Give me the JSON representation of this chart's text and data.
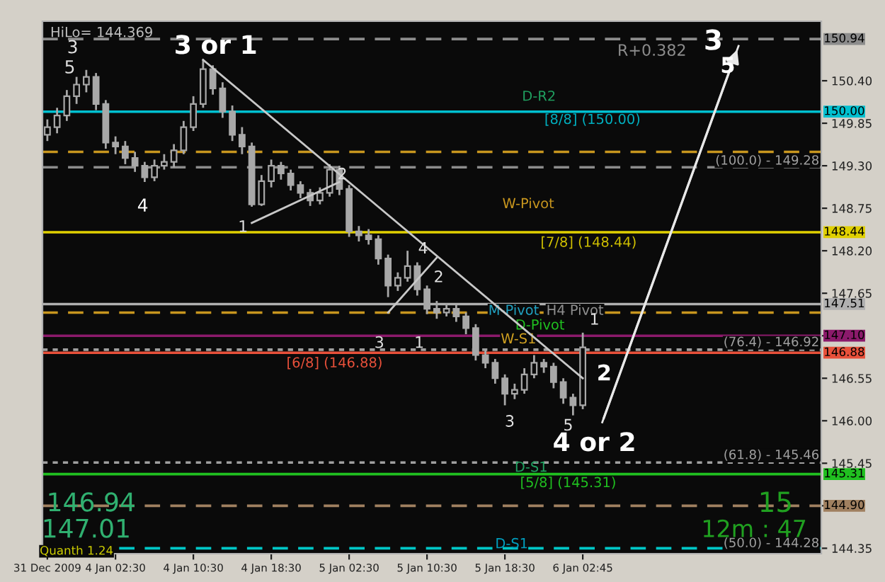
{
  "chart_data": {
    "type": "candlestick",
    "categories": [
      "31 Dec 2009",
      null,
      null,
      null,
      null,
      null,
      null,
      "4 Jan 02:30",
      null,
      null,
      null,
      null,
      null,
      null,
      null,
      "4 Jan 10:30",
      null,
      null,
      null,
      null,
      null,
      null,
      null,
      "4 Jan 18:30",
      null,
      null,
      null,
      null,
      null,
      null,
      null,
      "5 Jan 02:30",
      null,
      null,
      null,
      null,
      null,
      null,
      null,
      "5 Jan 10:30",
      null,
      null,
      null,
      null,
      null,
      null,
      null,
      "5 Jan 18:30",
      null,
      null,
      null,
      null,
      null,
      null,
      null,
      "6 Jan 02:45",
      null,
      null,
      null,
      null,
      null,
      null,
      null,
      null,
      null,
      null,
      null,
      null,
      null,
      null,
      null,
      null,
      null,
      null,
      null,
      null,
      null,
      null,
      null,
      null
    ],
    "ohlc": [
      [
        149.7,
        149.9,
        149.62,
        149.8
      ],
      [
        149.8,
        150.05,
        149.72,
        149.95
      ],
      [
        149.95,
        150.28,
        149.88,
        150.2
      ],
      [
        150.2,
        150.45,
        150.1,
        150.35
      ],
      [
        150.35,
        150.54,
        150.25,
        150.45
      ],
      [
        150.45,
        150.5,
        150.02,
        150.1
      ],
      [
        150.1,
        150.15,
        149.52,
        149.6
      ],
      [
        149.6,
        149.68,
        149.45,
        149.55
      ],
      [
        149.55,
        149.62,
        149.32,
        149.4
      ],
      [
        149.4,
        149.48,
        149.22,
        149.3
      ],
      [
        149.3,
        149.35,
        149.09,
        149.15
      ],
      [
        149.15,
        149.38,
        149.1,
        149.3
      ],
      [
        149.3,
        149.45,
        149.25,
        149.35
      ],
      [
        149.35,
        149.58,
        149.28,
        149.5
      ],
      [
        149.5,
        149.88,
        149.45,
        149.8
      ],
      [
        149.8,
        150.2,
        149.75,
        150.1
      ],
      [
        150.1,
        150.67,
        150.05,
        150.55
      ],
      [
        150.55,
        150.6,
        150.22,
        150.3
      ],
      [
        150.3,
        150.38,
        149.92,
        150.0
      ],
      [
        150.0,
        150.08,
        149.62,
        149.7
      ],
      [
        149.7,
        149.8,
        149.45,
        149.55
      ],
      [
        149.55,
        149.6,
        148.77,
        148.8
      ],
      [
        148.8,
        149.18,
        148.78,
        149.1
      ],
      [
        149.1,
        149.38,
        149.02,
        149.3
      ],
      [
        149.3,
        149.35,
        149.12,
        149.2
      ],
      [
        149.2,
        149.25,
        148.98,
        149.05
      ],
      [
        149.05,
        149.1,
        148.88,
        148.95
      ],
      [
        148.95,
        149.0,
        148.78,
        148.85
      ],
      [
        148.85,
        149.02,
        148.8,
        148.95
      ],
      [
        148.95,
        149.32,
        148.9,
        149.25
      ],
      [
        149.25,
        149.3,
        148.92,
        149.0
      ],
      [
        149.0,
        149.05,
        148.38,
        148.45
      ],
      [
        148.45,
        148.52,
        148.32,
        148.4
      ],
      [
        148.4,
        148.48,
        148.28,
        148.35
      ],
      [
        148.35,
        148.4,
        148.02,
        148.1
      ],
      [
        148.1,
        148.15,
        147.6,
        147.75
      ],
      [
        147.75,
        147.92,
        147.68,
        147.85
      ],
      [
        147.85,
        148.2,
        147.8,
        148.0
      ],
      [
        148.0,
        148.05,
        147.62,
        147.7
      ],
      [
        147.7,
        147.75,
        147.38,
        147.45
      ],
      [
        147.45,
        147.55,
        147.32,
        147.4
      ],
      [
        147.4,
        147.52,
        147.35,
        147.45
      ],
      [
        147.45,
        147.5,
        147.28,
        147.35
      ],
      [
        147.35,
        147.4,
        147.12,
        147.2
      ],
      [
        147.2,
        147.25,
        146.78,
        146.85
      ],
      [
        146.85,
        146.92,
        146.68,
        146.75
      ],
      [
        146.75,
        146.8,
        146.48,
        146.55
      ],
      [
        146.55,
        146.6,
        146.2,
        146.35
      ],
      [
        146.35,
        146.48,
        146.28,
        146.4
      ],
      [
        146.4,
        146.68,
        146.35,
        146.6
      ],
      [
        146.6,
        146.85,
        146.55,
        146.75
      ],
      [
        146.75,
        146.8,
        146.62,
        146.7
      ],
      [
        146.7,
        146.75,
        146.42,
        146.5
      ],
      [
        146.5,
        146.55,
        146.22,
        146.3
      ],
      [
        146.3,
        146.35,
        146.07,
        146.2
      ],
      [
        146.2,
        147.14,
        146.15,
        146.95
      ],
      null,
      null,
      null,
      null,
      null,
      null,
      null,
      null,
      null,
      null,
      null,
      null,
      null,
      null,
      null,
      null,
      null,
      null,
      null,
      null,
      null,
      null,
      null,
      null
    ],
    "color": "#a8a8a8",
    "series": [
      {
        "type": "line",
        "color": "#c8c8c8",
        "values": [
          null,
          null,
          null,
          null,
          null,
          null,
          null,
          null,
          null,
          null,
          null,
          null,
          null,
          null,
          null,
          null,
          150.67,
          null,
          null,
          null,
          null,
          null,
          null,
          null,
          null,
          null,
          null,
          null,
          null,
          null,
          null,
          null,
          null,
          null,
          null,
          null,
          null,
          null,
          null,
          null,
          null,
          null,
          null,
          null,
          null,
          null,
          null,
          null,
          null,
          null,
          null,
          null,
          null,
          null,
          null,
          146.55,
          null,
          null,
          null,
          null,
          null,
          null,
          null,
          null,
          null,
          null,
          null,
          null,
          null,
          null,
          null,
          null,
          null,
          null,
          null,
          null,
          null,
          null,
          null,
          null
        ]
      },
      {
        "type": "line",
        "color": "#c8c8c8",
        "values": [
          null,
          null,
          null,
          null,
          null,
          null,
          null,
          null,
          null,
          null,
          null,
          null,
          null,
          null,
          null,
          null,
          null,
          null,
          null,
          null,
          null,
          148.56,
          null,
          null,
          null,
          null,
          null,
          null,
          null,
          null,
          149.09,
          null,
          null,
          null,
          null,
          null,
          null,
          null,
          null,
          null,
          null,
          null,
          null,
          null,
          null,
          null,
          null,
          null,
          null,
          null,
          null,
          null,
          null,
          null,
          null,
          null,
          null,
          null,
          null,
          null,
          null,
          null,
          null,
          null,
          null,
          null,
          null,
          null,
          null,
          null,
          null,
          null,
          null,
          null,
          null,
          null,
          null,
          null,
          null,
          null
        ]
      },
      {
        "type": "line",
        "color": "#c8c8c8",
        "values": [
          null,
          null,
          null,
          null,
          null,
          null,
          null,
          null,
          null,
          null,
          null,
          null,
          null,
          null,
          null,
          null,
          null,
          null,
          null,
          null,
          null,
          null,
          null,
          null,
          null,
          null,
          null,
          null,
          null,
          null,
          null,
          null,
          null,
          null,
          null,
          147.4,
          null,
          null,
          null,
          null,
          148.11,
          null,
          null,
          null,
          null,
          null,
          null,
          null,
          null,
          null,
          null,
          null,
          null,
          null,
          null,
          null,
          null,
          null,
          null,
          null,
          null,
          null,
          null,
          null,
          null,
          null,
          null,
          null,
          null,
          null,
          null,
          null,
          null,
          null,
          null,
          null,
          null,
          null,
          null,
          null
        ]
      },
      {
        "type": "line",
        "color": "#e8e8e8",
        "values": [
          null,
          null,
          null,
          null,
          null,
          null,
          null,
          null,
          null,
          null,
          null,
          null,
          null,
          null,
          null,
          null,
          null,
          null,
          null,
          null,
          null,
          null,
          null,
          null,
          null,
          null,
          null,
          null,
          null,
          null,
          null,
          null,
          null,
          null,
          null,
          null,
          null,
          null,
          null,
          null,
          null,
          null,
          null,
          null,
          null,
          null,
          null,
          null,
          null,
          null,
          null,
          null,
          null,
          null,
          null,
          null,
          null,
          145.98,
          null,
          null,
          null,
          null,
          null,
          null,
          null,
          null,
          null,
          null,
          null,
          null,
          null,
          150.85,
          null,
          null,
          null,
          null,
          null,
          null,
          null,
          null
        ]
      }
    ],
    "ylim": [
      144.28,
      151.17
    ],
    "yticks": [
      {
        "value": 150.4,
        "label": "150.40"
      },
      149.85,
      {
        "value": 149.3,
        "label": "149.30"
      },
      148.75,
      {
        "value": 148.2,
        "label": "148.20"
      },
      147.65,
      {
        "value": 147.1,
        "label": null
      },
      146.55,
      {
        "value": 146.0,
        "label": "146.00"
      },
      145.45,
      {
        "value": 144.9,
        "label": null
      },
      144.35
    ],
    "ref_lines": [
      {
        "axis": "y",
        "value": 150.94,
        "label": "150.94",
        "color": "#8c8c8c",
        "line_style": "dashed"
      },
      {
        "axis": "y",
        "value": 150.0,
        "label": "150.00",
        "color": "#00c0d0",
        "line_style": "solid"
      },
      {
        "axis": "y",
        "value": 149.48,
        "color": "#c8961e",
        "line_style": "dashed"
      },
      {
        "axis": "y",
        "value": 149.28,
        "color": "#8c8c8c",
        "line_style": "dashed"
      },
      {
        "axis": "y",
        "value": 148.44,
        "label": "148.44",
        "color": "#e0d000",
        "line_style": "solid"
      },
      {
        "axis": "y",
        "value": 147.51,
        "label": "147.51",
        "color": "#b0b0b0",
        "line_style": "solid"
      },
      {
        "axis": "y",
        "value": 147.4,
        "color": "#c8961e",
        "line_style": "dashed"
      },
      {
        "axis": "y",
        "value": 147.1,
        "label": "147.10",
        "color": "#8b1a6b",
        "line_style": "solid"
      },
      {
        "axis": "y",
        "value": 146.92,
        "color": "#a0a0a0",
        "line_style": "dotted"
      },
      {
        "axis": "y",
        "value": 146.88,
        "label": "146.88",
        "color": "#e8503a",
        "line_style": "solid"
      },
      {
        "axis": "y",
        "value": 145.46,
        "color": "#a0a0a0",
        "line_style": "dotted"
      },
      {
        "axis": "y",
        "value": 145.31,
        "label": "145.31",
        "color": "#20c020",
        "line_style": "solid"
      },
      {
        "axis": "y",
        "value": 144.9,
        "label": "144.90",
        "color": "#a08060",
        "line_style": "dashed"
      },
      {
        "axis": "y",
        "value": 144.35,
        "color": "#00c8c8",
        "line_style": "dashed"
      }
    ],
    "annotations": [
      "HiLo= 144.369",
      "3",
      "5",
      "3 or 1",
      "4",
      {
        "text": "1",
        "y": 148.5
      },
      "2",
      {
        "text": "4",
        "y": 148.22
      },
      "2",
      "3",
      "1",
      "1",
      "2",
      "3",
      "5",
      "4 or 2",
      "3",
      "5",
      "R+0.382",
      "D-R2",
      "[8/8] (150.00)",
      "(100.0) - 149.28",
      "W-Pivot",
      "[7/8] (148.44)",
      "M-Pivot",
      "H4 Pivot",
      "D-Pivot",
      "W-S1",
      "(76.4) - 146.92",
      "[6/8] (146.88)",
      "(61.8) - 145.46",
      "D-S1",
      "[5/8] (145.31)",
      "15",
      "12m : 47",
      "(50.0) - 144.28",
      "D-S1",
      "146.94",
      "147.01",
      "Quanth 1.24"
    ],
    "grid": false,
    "legend": false
  }
}
